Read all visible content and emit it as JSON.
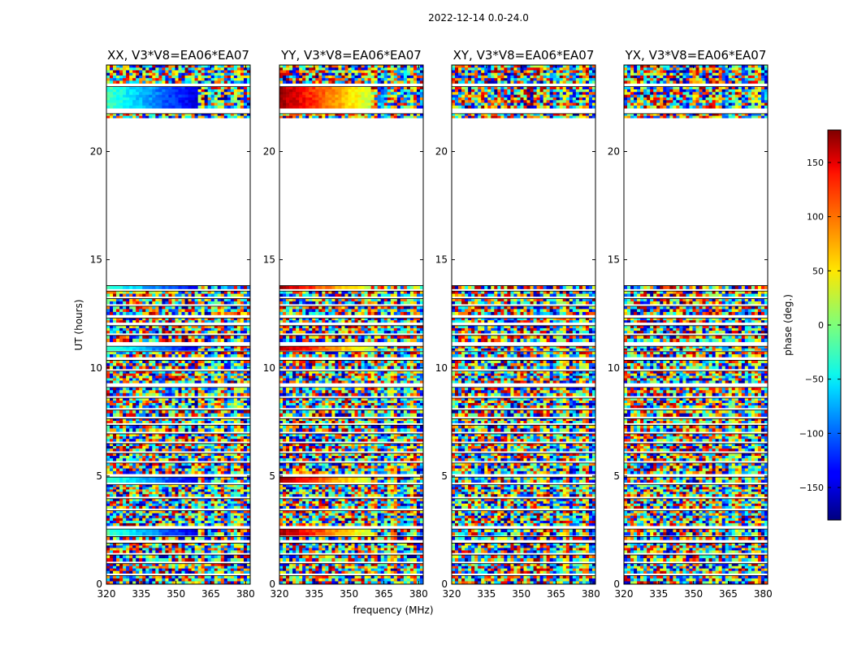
{
  "figure": {
    "suptitle": "2022-12-14 0.0-24.0",
    "xlabel": "frequency (MHz)",
    "ylabel": "UT (hours)",
    "colorbar_label": "phase (deg.)",
    "colorbar_ticks": [
      150,
      100,
      50,
      0,
      -50,
      -100,
      -150
    ],
    "colorbar_range": [
      -180,
      180
    ]
  },
  "chart_data": [
    {
      "type": "heatmap",
      "title": "XX, V3*V8=EA06*EA07",
      "xlabel": "frequency (MHz)",
      "ylabel": "UT (hours)",
      "xlim": [
        320,
        382
      ],
      "ylim": [
        0,
        24
      ],
      "xticks": [
        320,
        335,
        350,
        365,
        380
      ],
      "yticks": [
        0,
        5,
        10,
        15,
        20
      ],
      "value_label": "phase (deg.)",
      "value_range": [
        -180,
        180
      ],
      "coherent_bands": [
        {
          "t0": 22.0,
          "t1": 23.0,
          "phase_start": -20,
          "phase_end": -150
        },
        {
          "t0": 13.65,
          "t1": 13.8,
          "phase_start": -20,
          "phase_end": -150
        },
        {
          "t0": 10.8,
          "t1": 11.0,
          "phase_start": -20,
          "phase_end": -150
        },
        {
          "t0": 4.7,
          "t1": 4.95,
          "phase_start": -20,
          "phase_end": -150
        },
        {
          "t0": 2.25,
          "t1": 2.55,
          "phase_start": -20,
          "phase_end": -150
        }
      ]
    },
    {
      "type": "heatmap",
      "title": "YY, V3*V8=EA06*EA07",
      "xlabel": "frequency (MHz)",
      "ylabel": "UT (hours)",
      "xlim": [
        320,
        382
      ],
      "ylim": [
        0,
        24
      ],
      "xticks": [
        320,
        335,
        350,
        365,
        380
      ],
      "yticks": [
        0,
        5,
        10,
        15,
        20
      ],
      "value_label": "phase (deg.)",
      "value_range": [
        -180,
        180
      ],
      "coherent_bands": [
        {
          "t0": 22.0,
          "t1": 23.0,
          "phase_start": 170,
          "phase_end": 20
        },
        {
          "t0": 13.65,
          "t1": 13.8,
          "phase_start": 170,
          "phase_end": 20
        },
        {
          "t0": 10.8,
          "t1": 11.0,
          "phase_start": 170,
          "phase_end": 20
        },
        {
          "t0": 4.7,
          "t1": 4.95,
          "phase_start": 170,
          "phase_end": 20
        },
        {
          "t0": 2.25,
          "t1": 2.55,
          "phase_start": 170,
          "phase_end": 20
        }
      ]
    },
    {
      "type": "heatmap",
      "title": "XY, V3*V8=EA06*EA07",
      "xlabel": "frequency (MHz)",
      "ylabel": "UT (hours)",
      "xlim": [
        320,
        382
      ],
      "ylim": [
        0,
        24
      ],
      "xticks": [
        320,
        335,
        350,
        365,
        380
      ],
      "yticks": [
        0,
        5,
        10,
        15,
        20
      ],
      "value_label": "phase (deg.)",
      "value_range": [
        -180,
        180
      ],
      "coherent_bands": []
    },
    {
      "type": "heatmap",
      "title": "YX, V3*V8=EA06*EA07",
      "xlabel": "frequency (MHz)",
      "ylabel": "UT (hours)",
      "xlim": [
        320,
        382
      ],
      "ylim": [
        0,
        24
      ],
      "xticks": [
        320,
        335,
        350,
        365,
        380
      ],
      "yticks": [
        0,
        5,
        10,
        15,
        20
      ],
      "value_label": "phase (deg.)",
      "value_range": [
        -180,
        180
      ],
      "coherent_bands": []
    }
  ],
  "data_intervals_ut": [
    [
      0.0,
      0.4
    ],
    [
      0.5,
      0.95
    ],
    [
      1.05,
      1.35
    ],
    [
      1.45,
      1.9
    ],
    [
      2.05,
      2.2
    ],
    [
      2.25,
      2.55
    ],
    [
      2.7,
      3.4
    ],
    [
      3.5,
      3.95
    ],
    [
      4.05,
      4.6
    ],
    [
      4.7,
      4.95
    ],
    [
      5.1,
      5.6
    ],
    [
      5.7,
      6.05
    ],
    [
      6.15,
      6.5
    ],
    [
      6.6,
      6.95
    ],
    [
      7.05,
      7.35
    ],
    [
      7.45,
      7.65
    ],
    [
      7.75,
      8.05
    ],
    [
      8.15,
      8.6
    ],
    [
      8.7,
      9.1
    ],
    [
      9.3,
      9.85
    ],
    [
      9.95,
      10.35
    ],
    [
      10.5,
      10.75
    ],
    [
      10.8,
      11.0
    ],
    [
      11.2,
      11.5
    ],
    [
      11.6,
      11.95
    ],
    [
      12.1,
      12.3
    ],
    [
      12.45,
      12.85
    ],
    [
      12.95,
      13.2
    ],
    [
      13.3,
      13.55
    ],
    [
      13.65,
      13.8
    ],
    [
      21.55,
      21.75
    ],
    [
      22.0,
      23.0
    ],
    [
      23.15,
      24.0
    ]
  ]
}
